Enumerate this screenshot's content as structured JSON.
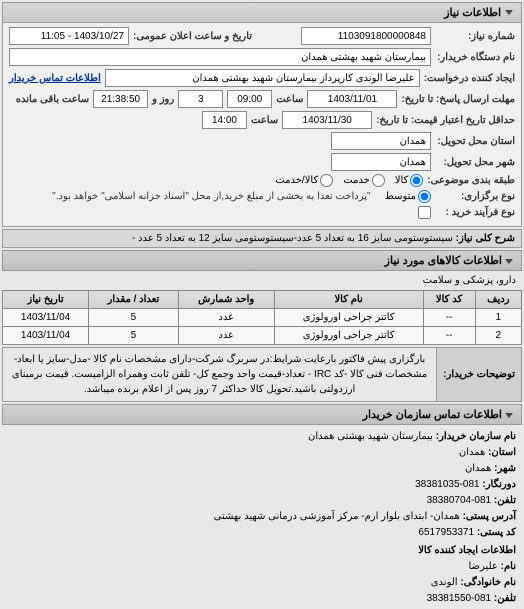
{
  "header": {
    "title": "اطلاعات نیاز"
  },
  "form": {
    "req_num_label": "شماره نیاز:",
    "req_num": "1103091800000848",
    "pub_date_label": "تاریخ و ساعت اعلان عمومی:",
    "pub_date": "1403/10/27 - 11:05",
    "buyer_org_label": "نام دستگاه خریدار:",
    "buyer_org": "بیمارستان شهید بهشتی همدان",
    "requester_label": "ایجاد کننده درخواست:",
    "requester": "علیرضا الوندی کارپرداز بیمارستان شهید بهشتی همدان",
    "contact_label": "اطلاعات تماس خریدار",
    "deadline_label": "مهلت ارسال پاسخ: تا تاریخ:",
    "deadline_date": "1403/11/01",
    "time_label": "ساعت",
    "deadline_time": "09:00",
    "remain_days": "3",
    "remain_days_label": "روز و",
    "remain_time": "21:38:50",
    "remain_suffix": "ساعت باقی مانده",
    "validity_label": "حداقل تاریخ اعتبار قیمت: تا تاریخ:",
    "validity_date": "1403/11/30",
    "validity_time": "14:00",
    "delivery_state_label": "استان محل تحویل:",
    "delivery_state": "همدان",
    "delivery_city_label": "شهر محل تحویل:",
    "delivery_city": "همدان",
    "budget_type_label": "طبقه بندی موضوعی:",
    "radio_goods": "کالا",
    "radio_service": "خدمت",
    "radio_both": "کالا/خدمت",
    "size_label": "نوع برگزاری:",
    "radio_medium": "متوسط",
    "payment_note": "\"پرداخت تعدا به بخشی از مبلغ خرید,از محل \"اسناد خزانه اسلامی\" خواهد بود.\"",
    "bool_label": "نوع فرآیند خرید :",
    "main_desc_label": "شرح کلی نیاز:",
    "main_desc": "سیستوستومی سایز 16 به تعداد 5 عدد-سیستوستومی سایز 12 به تعداد 5 عدد -"
  },
  "goods": {
    "section_title": "اطلاعات کالاهای مورد نیاز",
    "category": "دارو، پزشکی و سلامت",
    "cols": {
      "row": "ردیف",
      "code": "کد کالا",
      "name": "نام کالا",
      "unit": "واحد شمارش",
      "qty": "تعداد / مقدار",
      "date": "تاریخ نیاز"
    },
    "rows": [
      {
        "n": "1",
        "code": "--",
        "name": "کاتتر جراحی اورولوژی",
        "unit": "عدد",
        "qty": "5",
        "date": "1403/11/04"
      },
      {
        "n": "2",
        "code": "--",
        "name": "کاتتر جراحی اورولوژی",
        "unit": "عدد",
        "qty": "5",
        "date": "1403/11/04"
      }
    ]
  },
  "buyer_note": {
    "label": "توضیحات خریدار:",
    "text": "بارگزاری پیش فاکتور بارعایت شرایط:در سربرگ شرکت-دارای مشخصات نام کالا -مدل-سایز یا ابعاد-مشخصات فنی کالا -کد IRC - تعداد-قیمت واحد وجمع کل- تلفن ثابت وهمراه الزامیست. قیمت برمبنای ارزدولتی باشید.تحویل کالا حداکثر 7 روز پس از اعلام برنده میباشد."
  },
  "contact": {
    "section_title": "اطلاعات تماس سازمان خریدار",
    "org_label": "نام سازمان خریدار:",
    "org": "بیمارستان شهید بهشتی همدان",
    "province_label": "استان:",
    "province": "همدان",
    "city_label": "شهر:",
    "city": "همدان",
    "fax_label": "دورنگار:",
    "fax": "081-38381035",
    "phone_label": "تلفن:",
    "phone": "081-38380704",
    "address_label": "آدرس پستی:",
    "address": "همدان- ابتدای بلوار ارم- مرکز آموزشی درمانی شهید بهشتی",
    "postal_label": "کد پستی:",
    "postal": "6517953371",
    "creator_section": "اطلاعات ایجاد کننده کالا",
    "creator_name_label": "نام:",
    "creator_name": "علیرضا",
    "creator_family_label": "نام خانوادگی:",
    "creator_family": "الوندی",
    "creator_phone_label": "تلفن:",
    "creator_phone": "081-38381550"
  }
}
